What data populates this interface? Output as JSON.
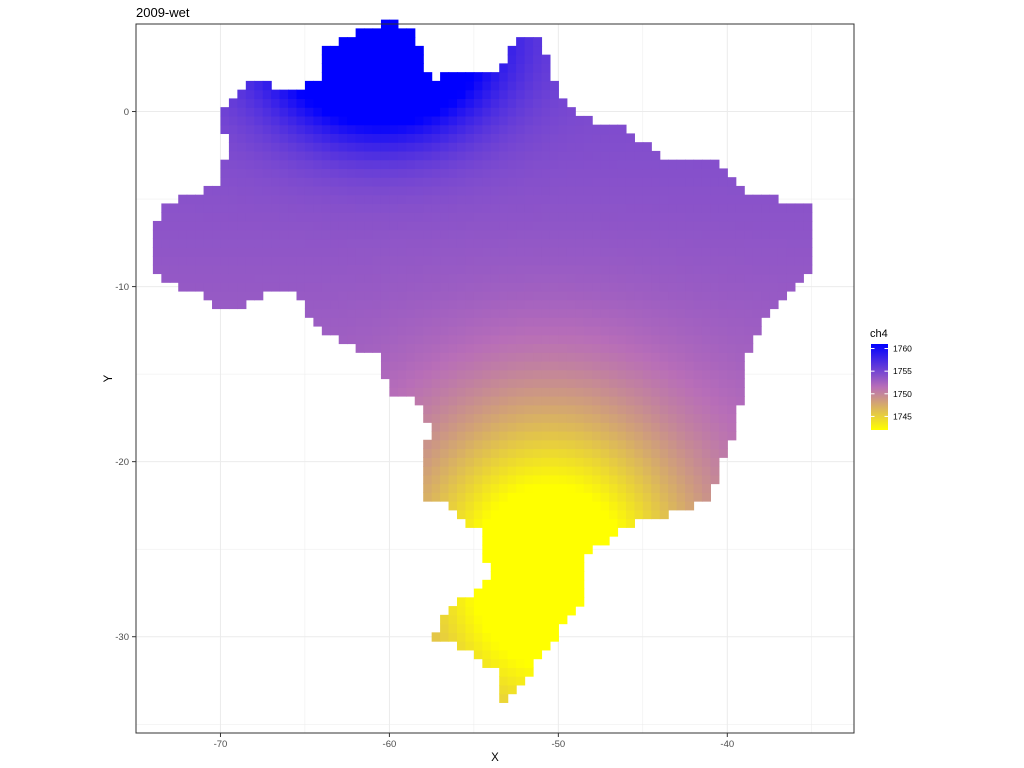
{
  "title": "2009-wet",
  "chart_data": {
    "type": "heatmap",
    "title": "2009-wet",
    "xlabel": "X",
    "ylabel": "Y",
    "xlim": [
      -75,
      -32.5
    ],
    "ylim": [
      -35.5,
      5
    ],
    "x_ticks": [
      -70,
      -60,
      -50,
      -40
    ],
    "y_ticks": [
      0,
      -10,
      -20,
      -30
    ],
    "x_tick_labels": [
      "-70",
      "-60",
      "-50",
      "-40"
    ],
    "y_tick_labels": [
      "0",
      "-10",
      "-20",
      "-30"
    ],
    "grid": true,
    "cell_size_deg": 0.5,
    "region_outline_lonlat": [
      [
        -60.0,
        5.2
      ],
      [
        -58.5,
        4.5
      ],
      [
        -57.5,
        1.8
      ],
      [
        -56.0,
        2.3
      ],
      [
        -54.0,
        2.2
      ],
      [
        -52.0,
        4.3
      ],
      [
        -51.0,
        4.4
      ],
      [
        -50.5,
        2.0
      ],
      [
        -49.5,
        0.2
      ],
      [
        -48.0,
        -0.5
      ],
      [
        -46.0,
        -1.0
      ],
      [
        -44.0,
        -2.5
      ],
      [
        -42.0,
        -2.8
      ],
      [
        -40.5,
        -3.0
      ],
      [
        -39.0,
        -4.5
      ],
      [
        -37.0,
        -5.0
      ],
      [
        -35.3,
        -5.3
      ],
      [
        -34.8,
        -7.0
      ],
      [
        -35.0,
        -8.8
      ],
      [
        -36.0,
        -10.0
      ],
      [
        -37.5,
        -11.5
      ],
      [
        -38.5,
        -13.0
      ],
      [
        -39.0,
        -15.0
      ],
      [
        -39.3,
        -17.0
      ],
      [
        -39.8,
        -19.0
      ],
      [
        -40.5,
        -20.5
      ],
      [
        -41.0,
        -22.0
      ],
      [
        -42.5,
        -22.8
      ],
      [
        -44.5,
        -23.2
      ],
      [
        -46.0,
        -23.8
      ],
      [
        -48.0,
        -25.0
      ],
      [
        -48.5,
        -26.0
      ],
      [
        -48.6,
        -28.0
      ],
      [
        -49.5,
        -29.0
      ],
      [
        -50.5,
        -30.5
      ],
      [
        -51.3,
        -31.5
      ],
      [
        -52.0,
        -32.5
      ],
      [
        -52.8,
        -33.5
      ],
      [
        -53.5,
        -33.5
      ],
      [
        -53.5,
        -32.0
      ],
      [
        -55.0,
        -31.0
      ],
      [
        -56.5,
        -30.3
      ],
      [
        -57.5,
        -30.0
      ],
      [
        -56.5,
        -28.5
      ],
      [
        -55.0,
        -27.5
      ],
      [
        -54.0,
        -26.5
      ],
      [
        -54.5,
        -25.0
      ],
      [
        -54.3,
        -24.0
      ],
      [
        -55.5,
        -23.5
      ],
      [
        -56.5,
        -22.3
      ],
      [
        -58.0,
        -22.0
      ],
      [
        -58.0,
        -20.0
      ],
      [
        -57.5,
        -18.0
      ],
      [
        -58.5,
        -16.5
      ],
      [
        -60.0,
        -16.0
      ],
      [
        -60.5,
        -14.0
      ],
      [
        -62.0,
        -13.5
      ],
      [
        -64.0,
        -12.5
      ],
      [
        -65.0,
        -11.5
      ],
      [
        -65.5,
        -10.0
      ],
      [
        -67.0,
        -10.2
      ],
      [
        -68.5,
        -11.0
      ],
      [
        -70.5,
        -11.0
      ],
      [
        -71.0,
        -10.0
      ],
      [
        -72.5,
        -10.0
      ],
      [
        -73.5,
        -9.5
      ],
      [
        -74.0,
        -8.5
      ],
      [
        -74.0,
        -7.0
      ],
      [
        -73.5,
        -5.5
      ],
      [
        -72.5,
        -5.0
      ],
      [
        -71.0,
        -4.5
      ],
      [
        -70.0,
        -4.0
      ],
      [
        -69.5,
        -1.5
      ],
      [
        -70.0,
        -0.5
      ],
      [
        -69.5,
        0.7
      ],
      [
        -69.0,
        1.0
      ],
      [
        -67.5,
        2.0
      ],
      [
        -66.5,
        1.2
      ],
      [
        -65.5,
        1.0
      ],
      [
        -64.0,
        2.0
      ],
      [
        -64.0,
        3.5
      ],
      [
        -63.0,
        4.0
      ],
      [
        -62.0,
        4.5
      ],
      [
        -61.0,
        4.8
      ]
    ],
    "value_model": {
      "centers": [
        {
          "lon": -60.5,
          "lat": 3.5,
          "amp": 16,
          "sx": 6.0,
          "sy": 4.5
        },
        {
          "lon": -50.5,
          "lat": -26.0,
          "amp": -13,
          "sx": 8.0,
          "sy": 9.0
        }
      ],
      "base": 1754.5,
      "gradient_lat": 0.12
    },
    "legend": {
      "title": "ch4",
      "position": "right",
      "range": [
        1742,
        1761
      ],
      "breaks": [
        1760,
        1755,
        1750,
        1745
      ],
      "break_labels": [
        "1760",
        "1755",
        "1750",
        "1745"
      ],
      "colors": [
        "#ffff00",
        "#b86eb8",
        "#0000ff"
      ]
    }
  }
}
